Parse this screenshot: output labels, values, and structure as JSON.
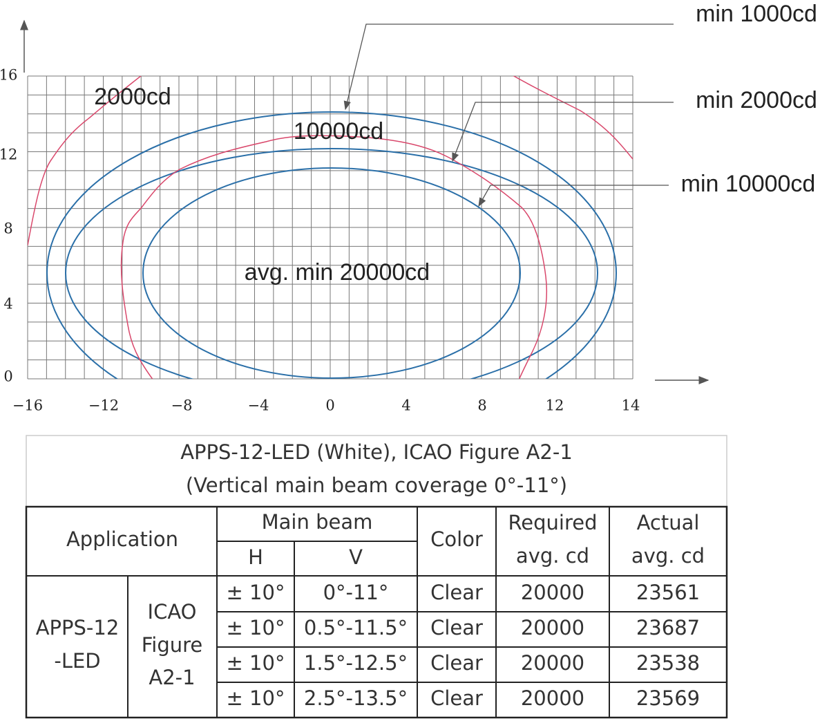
{
  "figure": {
    "y_ticks": [
      "16",
      "12",
      "8",
      "4",
      "0"
    ],
    "x_ticks": [
      "−16",
      "−12",
      "−8",
      "−4",
      "0",
      "4",
      "8",
      "12",
      "14"
    ],
    "callouts": [
      "min 1000cd",
      "min 2000cd",
      "min 10000cd"
    ],
    "labels": [
      "2000cd",
      "10000cd",
      "avg. min 20000cd"
    ]
  },
  "table": {
    "title": [
      "APPS-12-LED (White), ICAO Figure A2-1",
      "(Vertical main beam coverage 0°-11°)"
    ],
    "header": {
      "application": "Application",
      "main_beam": "Main beam",
      "h": "H",
      "v": "V",
      "color": "Color",
      "required": [
        "Required",
        "avg. cd"
      ],
      "actual": [
        "Actual",
        "avg. cd"
      ]
    },
    "application": [
      "APPS-12",
      "-LED"
    ],
    "standard": [
      "ICAO",
      "Figure",
      "A2-1"
    ],
    "rows": [
      [
        "± 10°",
        "0°-11°",
        "Clear",
        "20000",
        "23561"
      ],
      [
        "± 10°",
        "0.5°-11.5°",
        "Clear",
        "20000",
        "23687"
      ],
      [
        "± 10°",
        "1.5°-12.5°",
        "Clear",
        "20000",
        "23538"
      ],
      [
        "± 10°",
        "2.5°-13.5°",
        "Clear",
        "20000",
        "23569"
      ]
    ]
  }
}
